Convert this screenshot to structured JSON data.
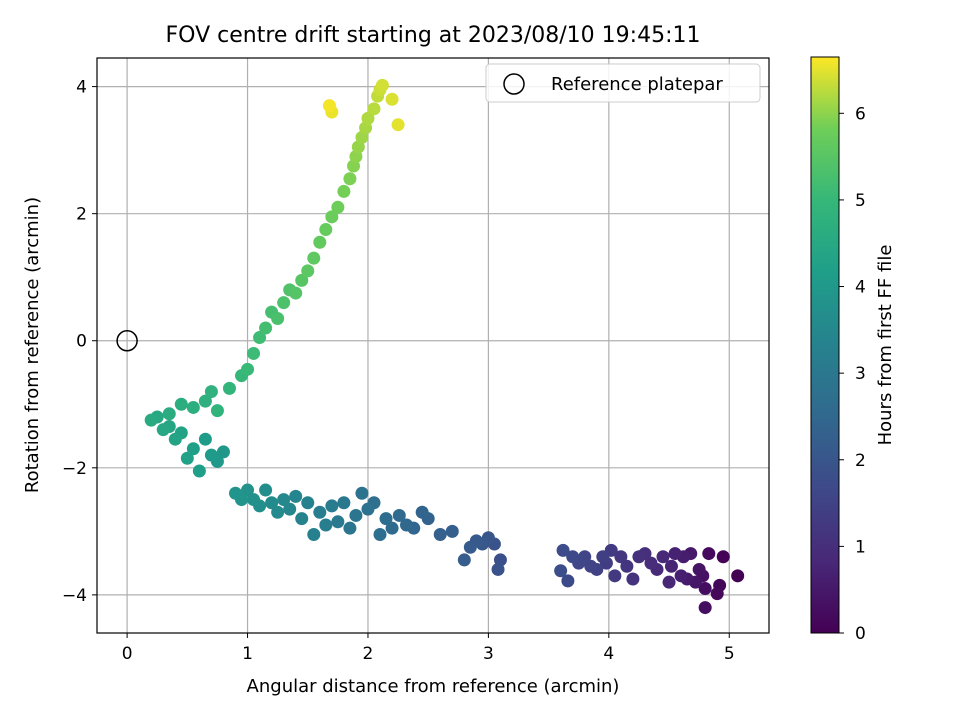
{
  "chart_data": {
    "type": "scatter",
    "title": "FOV centre drift starting at 2023/08/10 19:45:11",
    "xlabel": "Angular distance from reference (arcmin)",
    "ylabel": "Rotation from reference (arcmin)",
    "xlim": [
      -0.25,
      5.33
    ],
    "ylim": [
      -4.6,
      4.45
    ],
    "xticks": [
      0,
      1,
      2,
      3,
      4,
      5
    ],
    "yticks": [
      -4,
      -2,
      0,
      2,
      4
    ],
    "grid": true,
    "legend": {
      "placement": "top-right",
      "entries": [
        "Reference platepar"
      ]
    },
    "reference_point": {
      "x": 0,
      "y": 0,
      "label": "Reference platepar"
    },
    "colorbar": {
      "label": "Hours from first FF file",
      "colormap": "viridis",
      "range": [
        0,
        6.65
      ],
      "ticks": [
        0,
        1,
        2,
        3,
        4,
        5,
        6
      ]
    },
    "series": [
      {
        "points": [
          [
            5.07,
            -3.7,
            0.0
          ],
          [
            4.95,
            -3.4,
            0.05
          ],
          [
            4.92,
            -3.85,
            0.1
          ],
          [
            4.9,
            -3.98,
            0.15
          ],
          [
            4.83,
            -3.35,
            0.2
          ],
          [
            4.8,
            -3.9,
            0.25
          ],
          [
            4.8,
            -4.2,
            0.3
          ],
          [
            4.78,
            -3.7,
            0.35
          ],
          [
            4.75,
            -3.6,
            0.4
          ],
          [
            4.72,
            -3.8,
            0.45
          ],
          [
            4.68,
            -3.35,
            0.5
          ],
          [
            4.65,
            -3.75,
            0.55
          ],
          [
            4.62,
            -3.4,
            0.6
          ],
          [
            4.6,
            -3.7,
            0.65
          ],
          [
            4.55,
            -3.35,
            0.7
          ],
          [
            4.52,
            -3.55,
            0.75
          ],
          [
            4.5,
            -3.8,
            0.8
          ],
          [
            4.45,
            -3.4,
            0.85
          ],
          [
            4.4,
            -3.6,
            0.9
          ],
          [
            4.35,
            -3.5,
            0.95
          ],
          [
            4.3,
            -3.35,
            1.0
          ],
          [
            4.25,
            -3.4,
            1.05
          ],
          [
            4.2,
            -3.75,
            1.1
          ],
          [
            4.15,
            -3.55,
            1.15
          ],
          [
            4.1,
            -3.4,
            1.2
          ],
          [
            4.05,
            -3.7,
            1.25
          ],
          [
            4.02,
            -3.3,
            1.3
          ],
          [
            3.98,
            -3.5,
            1.35
          ],
          [
            3.95,
            -3.4,
            1.4
          ],
          [
            3.9,
            -3.6,
            1.45
          ],
          [
            3.85,
            -3.55,
            1.5
          ],
          [
            3.8,
            -3.4,
            1.55
          ],
          [
            3.75,
            -3.5,
            1.6
          ],
          [
            3.7,
            -3.4,
            1.65
          ],
          [
            3.66,
            -3.78,
            1.7
          ],
          [
            3.62,
            -3.3,
            1.75
          ],
          [
            3.6,
            -3.62,
            1.8
          ],
          [
            3.1,
            -3.45,
            1.85
          ],
          [
            3.08,
            -3.6,
            1.9
          ],
          [
            3.05,
            -3.2,
            1.95
          ],
          [
            3.0,
            -3.1,
            2.0
          ],
          [
            2.95,
            -3.2,
            2.05
          ],
          [
            2.9,
            -3.15,
            2.1
          ],
          [
            2.85,
            -3.25,
            2.15
          ],
          [
            2.8,
            -3.45,
            2.2
          ],
          [
            2.7,
            -3.0,
            2.25
          ],
          [
            2.6,
            -3.05,
            2.3
          ],
          [
            2.5,
            -2.8,
            2.35
          ],
          [
            2.45,
            -2.7,
            2.4
          ],
          [
            2.38,
            -2.95,
            2.45
          ],
          [
            2.32,
            -2.9,
            2.5
          ],
          [
            2.26,
            -2.75,
            2.55
          ],
          [
            2.2,
            -2.95,
            2.6
          ],
          [
            2.15,
            -2.8,
            2.65
          ],
          [
            2.1,
            -3.05,
            2.7
          ],
          [
            2.05,
            -2.55,
            2.75
          ],
          [
            2.0,
            -2.65,
            2.8
          ],
          [
            1.95,
            -2.4,
            2.85
          ],
          [
            1.9,
            -2.75,
            2.9
          ],
          [
            1.85,
            -2.95,
            2.95
          ],
          [
            1.8,
            -2.55,
            3.0
          ],
          [
            1.75,
            -2.85,
            3.05
          ],
          [
            1.7,
            -2.6,
            3.1
          ],
          [
            1.65,
            -2.9,
            3.15
          ],
          [
            1.6,
            -2.7,
            3.2
          ],
          [
            1.55,
            -3.05,
            3.25
          ],
          [
            1.5,
            -2.55,
            3.3
          ],
          [
            1.45,
            -2.8,
            3.35
          ],
          [
            1.4,
            -2.45,
            3.4
          ],
          [
            1.35,
            -2.65,
            3.45
          ],
          [
            1.3,
            -2.5,
            3.5
          ],
          [
            1.25,
            -2.7,
            3.55
          ],
          [
            1.2,
            -2.55,
            3.6
          ],
          [
            1.15,
            -2.35,
            3.65
          ],
          [
            1.1,
            -2.6,
            3.7
          ],
          [
            1.05,
            -2.5,
            3.75
          ],
          [
            1.0,
            -2.35,
            3.8
          ],
          [
            0.95,
            -2.5,
            3.85
          ],
          [
            0.9,
            -2.4,
            3.9
          ],
          [
            0.8,
            -1.75,
            3.95
          ],
          [
            0.75,
            -1.9,
            4.0
          ],
          [
            0.7,
            -1.8,
            4.05
          ],
          [
            0.65,
            -1.55,
            4.1
          ],
          [
            0.6,
            -2.05,
            4.15
          ],
          [
            0.55,
            -1.7,
            4.2
          ],
          [
            0.5,
            -1.85,
            4.25
          ],
          [
            0.45,
            -1.45,
            4.3
          ],
          [
            0.4,
            -1.55,
            4.35
          ],
          [
            0.35,
            -1.35,
            4.4
          ],
          [
            0.3,
            -1.4,
            4.45
          ],
          [
            0.25,
            -1.2,
            4.5
          ],
          [
            0.2,
            -1.25,
            4.55
          ],
          [
            0.35,
            -1.15,
            4.6
          ],
          [
            0.45,
            -1.0,
            4.65
          ],
          [
            0.55,
            -1.05,
            4.7
          ],
          [
            0.65,
            -0.95,
            4.75
          ],
          [
            0.7,
            -0.8,
            4.8
          ],
          [
            0.75,
            -1.1,
            4.85
          ],
          [
            0.85,
            -0.75,
            4.9
          ],
          [
            0.95,
            -0.55,
            5.0
          ],
          [
            1.0,
            -0.45,
            5.05
          ],
          [
            1.05,
            -0.2,
            5.1
          ],
          [
            1.1,
            0.05,
            5.15
          ],
          [
            1.15,
            0.2,
            5.2
          ],
          [
            1.2,
            0.45,
            5.25
          ],
          [
            1.25,
            0.35,
            5.3
          ],
          [
            1.3,
            0.6,
            5.35
          ],
          [
            1.35,
            0.8,
            5.4
          ],
          [
            1.4,
            0.75,
            5.45
          ],
          [
            1.45,
            0.95,
            5.5
          ],
          [
            1.5,
            1.1,
            5.55
          ],
          [
            1.55,
            1.3,
            5.6
          ],
          [
            1.6,
            1.55,
            5.65
          ],
          [
            1.65,
            1.75,
            5.7
          ],
          [
            1.7,
            1.95,
            5.75
          ],
          [
            1.75,
            2.1,
            5.8
          ],
          [
            1.8,
            2.35,
            5.85
          ],
          [
            1.85,
            2.55,
            5.9
          ],
          [
            1.88,
            2.75,
            5.95
          ],
          [
            1.9,
            2.9,
            6.0
          ],
          [
            1.92,
            3.05,
            6.05
          ],
          [
            1.95,
            3.2,
            6.1
          ],
          [
            1.98,
            3.35,
            6.15
          ],
          [
            2.0,
            3.5,
            6.2
          ],
          [
            2.05,
            3.65,
            6.25
          ],
          [
            2.08,
            3.85,
            6.3
          ],
          [
            2.1,
            3.95,
            6.35
          ],
          [
            2.12,
            4.02,
            6.4
          ],
          [
            2.2,
            3.8,
            6.45
          ],
          [
            2.25,
            3.4,
            6.5
          ],
          [
            1.7,
            3.6,
            6.55
          ],
          [
            1.68,
            3.7,
            6.6
          ]
        ]
      }
    ]
  }
}
